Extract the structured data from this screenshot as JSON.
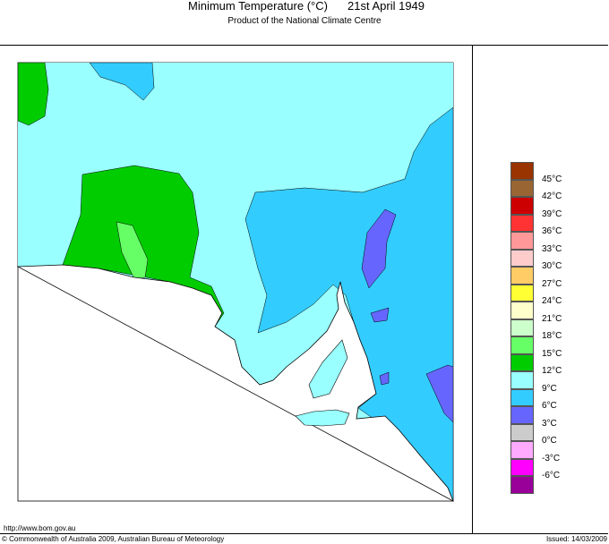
{
  "header": {
    "title": "Minimum Temperature (°C)",
    "date": "21st April 1949",
    "subtitle": "Product of the National Climate Centre"
  },
  "footer": {
    "url": "http://www.bom.gov.au",
    "copyright": "© Commonwealth of Australia 2009, Australian Bureau of Meteorology",
    "issued": "Issued: 14/03/2009"
  },
  "legend": {
    "colors": [
      "#993300",
      "#996633",
      "#cc0000",
      "#ff3333",
      "#ff9999",
      "#ffcccc",
      "#ffcc66",
      "#ffff33",
      "#ffffcc",
      "#ccffcc",
      "#66ff66",
      "#00cc00",
      "#99ffff",
      "#33ccff",
      "#6666ff",
      "#cccccc",
      "#ffaaff",
      "#ff00ff",
      "#990099"
    ],
    "labels": [
      "45°C",
      "42°C",
      "39°C",
      "36°C",
      "33°C",
      "30°C",
      "27°C",
      "24°C",
      "21°C",
      "18°C",
      "15°C",
      "12°C",
      "9°C",
      "6°C",
      "3°C",
      "0°C",
      "-3°C",
      "-6°C"
    ]
  }
}
